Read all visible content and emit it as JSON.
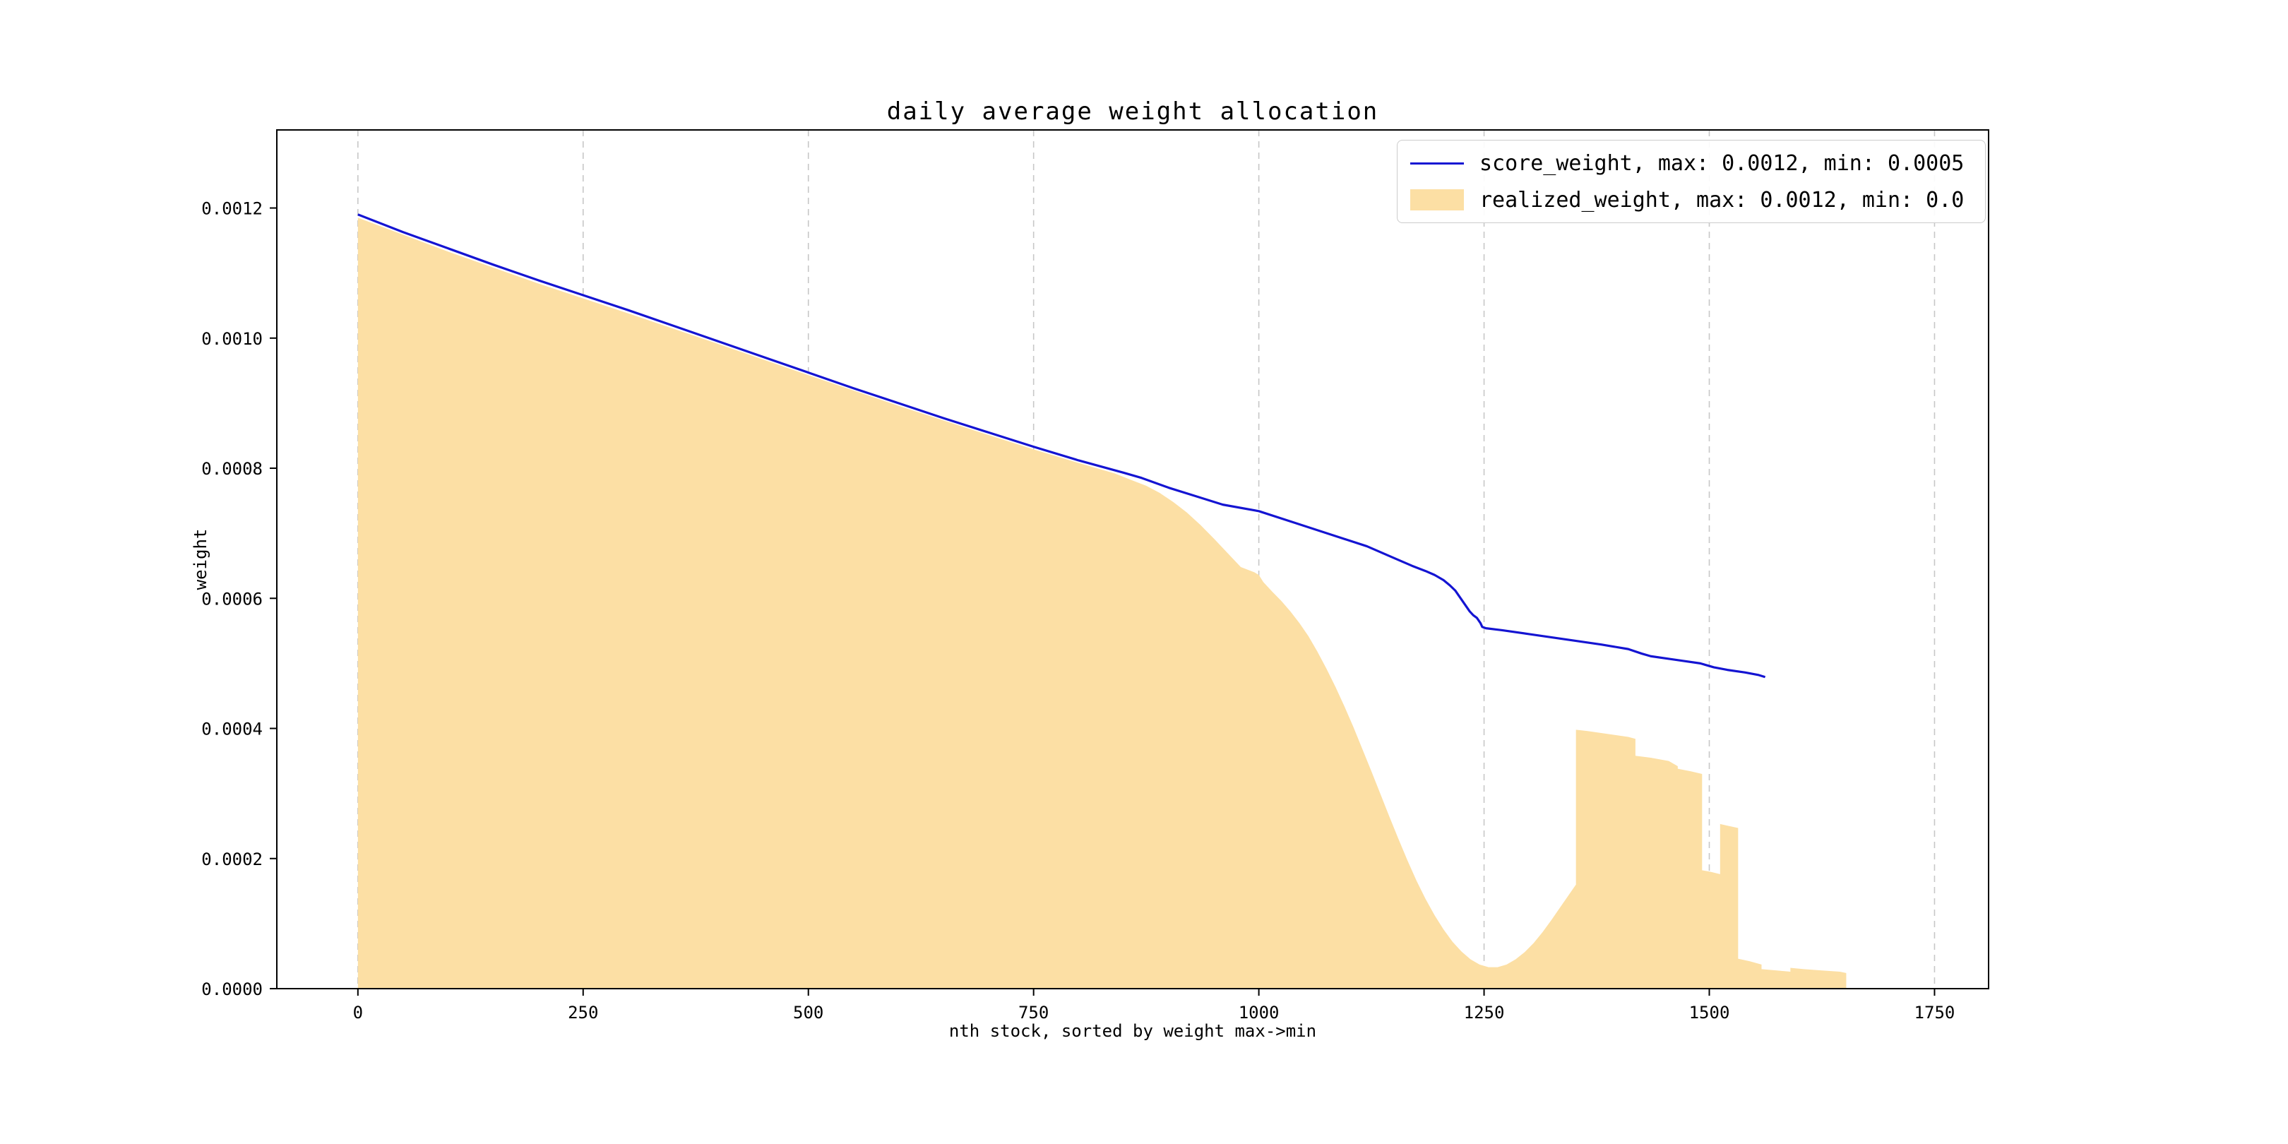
{
  "page": {
    "background": "#ffffff"
  },
  "chart": {
    "title": "daily average weight allocation",
    "xlabel": "nth stock, sorted by weight max->min",
    "ylabel": "weight"
  },
  "legend": {
    "position": "upper right",
    "items": [
      {
        "label": "score_weight, max: 0.0012, min: 0.0005",
        "sample": "line",
        "color": "#1414d2"
      },
      {
        "label": "realized_weight, max: 0.0012, min: 0.0",
        "sample": "patch",
        "color": "#fcdfa4"
      }
    ]
  },
  "chart_data": {
    "type": "area",
    "title": "daily average weight allocation",
    "xlabel": "nth stock, sorted by weight max->min",
    "ylabel": "weight",
    "xlim": [
      -90,
      1810
    ],
    "ylim": [
      0,
      0.00132
    ],
    "x_ticks": [
      0,
      250,
      500,
      750,
      1000,
      1250,
      1500,
      1750
    ],
    "x_tick_labels": [
      "0",
      "250",
      "500",
      "750",
      "1000",
      "1250",
      "1500",
      "1750"
    ],
    "y_ticks": [
      0,
      0.0002,
      0.0004,
      0.0006,
      0.0008,
      0.001,
      0.0012
    ],
    "y_tick_labels": [
      "0.0000",
      "0.0002",
      "0.0004",
      "0.0006",
      "0.0008",
      "0.0010",
      "0.0012"
    ],
    "grid": "vertical-dashed",
    "grid_color": "#c7c7c7",
    "legend_position": "upper right",
    "series": [
      {
        "name": "score_weight",
        "type": "line",
        "color": "#1414d2",
        "max": 0.0012,
        "min": 0.0005,
        "points": [
          [
            0,
            0.00119
          ],
          [
            50,
            0.001163
          ],
          [
            100,
            0.001138
          ],
          [
            150,
            0.001113
          ],
          [
            200,
            0.001089
          ],
          [
            250,
            0.001066
          ],
          [
            300,
            0.001043
          ],
          [
            350,
            0.001019
          ],
          [
            400,
            0.000995
          ],
          [
            450,
            0.000971
          ],
          [
            500,
            0.000947
          ],
          [
            550,
            0.000923
          ],
          [
            600,
            0.0009
          ],
          [
            650,
            0.000877
          ],
          [
            700,
            0.000855
          ],
          [
            750,
            0.000833
          ],
          [
            800,
            0.000812
          ],
          [
            850,
            0.000793
          ],
          [
            870,
            0.000785
          ],
          [
            900,
            0.00077
          ],
          [
            930,
            0.000757
          ],
          [
            960,
            0.000744
          ],
          [
            1000,
            0.000734
          ],
          [
            1040,
            0.000716
          ],
          [
            1080,
            0.000698
          ],
          [
            1120,
            0.00068
          ],
          [
            1150,
            0.000662
          ],
          [
            1170,
            0.00065
          ],
          [
            1185,
            0.000642
          ],
          [
            1195,
            0.000636
          ],
          [
            1205,
            0.000628
          ],
          [
            1212,
            0.00062
          ],
          [
            1218,
            0.000612
          ],
          [
            1222,
            0.000604
          ],
          [
            1226,
            0.000596
          ],
          [
            1230,
            0.000588
          ],
          [
            1234,
            0.00058
          ],
          [
            1238,
            0.000574
          ],
          [
            1242,
            0.00057
          ],
          [
            1246,
            0.000562
          ],
          [
            1248,
            0.000556
          ],
          [
            1252,
            0.000554
          ],
          [
            1270,
            0.000551
          ],
          [
            1300,
            0.000545
          ],
          [
            1340,
            0.000537
          ],
          [
            1380,
            0.000529
          ],
          [
            1410,
            0.000522
          ],
          [
            1425,
            0.000515
          ],
          [
            1435,
            0.000511
          ],
          [
            1455,
            0.000507
          ],
          [
            1470,
            0.000504
          ],
          [
            1490,
            0.0005
          ],
          [
            1505,
            0.000494
          ],
          [
            1520,
            0.00049
          ],
          [
            1540,
            0.000486
          ],
          [
            1555,
            0.000482
          ],
          [
            1562,
            0.000479
          ]
        ]
      },
      {
        "name": "realized_weight",
        "type": "area",
        "color": "#fcdfa4",
        "max": 0.0012,
        "min": 0.0,
        "points": [
          [
            0,
            0.001185
          ],
          [
            100,
            0.001133
          ],
          [
            200,
            0.001084
          ],
          [
            300,
            0.001038
          ],
          [
            400,
            0.000991
          ],
          [
            500,
            0.000943
          ],
          [
            600,
            0.000896
          ],
          [
            700,
            0.000851
          ],
          [
            750,
            0.000829
          ],
          [
            800,
            0.000808
          ],
          [
            840,
            0.000792
          ],
          [
            860,
            0.000781
          ],
          [
            875,
            0.000773
          ],
          [
            890,
            0.000762
          ],
          [
            905,
            0.000748
          ],
          [
            920,
            0.000732
          ],
          [
            935,
            0.000713
          ],
          [
            950,
            0.000692
          ],
          [
            965,
            0.00067
          ],
          [
            980,
            0.000648
          ],
          [
            995,
            0.00064
          ],
          [
            1000,
            0.000636
          ],
          [
            1005,
            0.000625
          ],
          [
            1015,
            0.00061
          ],
          [
            1025,
            0.000596
          ],
          [
            1035,
            0.00058
          ],
          [
            1045,
            0.000562
          ],
          [
            1055,
            0.000542
          ],
          [
            1065,
            0.000518
          ],
          [
            1075,
            0.000492
          ],
          [
            1085,
            0.000464
          ],
          [
            1095,
            0.000434
          ],
          [
            1105,
            0.000402
          ],
          [
            1115,
            0.000368
          ],
          [
            1125,
            0.000334
          ],
          [
            1135,
            0.000299
          ],
          [
            1145,
            0.000264
          ],
          [
            1155,
            0.00023
          ],
          [
            1165,
            0.000197
          ],
          [
            1175,
            0.000166
          ],
          [
            1185,
            0.000138
          ],
          [
            1195,
            0.000113
          ],
          [
            1205,
            9.1e-05
          ],
          [
            1215,
            7.2e-05
          ],
          [
            1225,
            5.7e-05
          ],
          [
            1235,
            4.5e-05
          ],
          [
            1245,
            3.7e-05
          ],
          [
            1255,
            3.3e-05
          ],
          [
            1265,
            3.3e-05
          ],
          [
            1275,
            3.7e-05
          ],
          [
            1285,
            4.5e-05
          ],
          [
            1295,
            5.6e-05
          ],
          [
            1305,
            7e-05
          ],
          [
            1315,
            8.7e-05
          ],
          [
            1325,
            0.000106
          ],
          [
            1335,
            0.000126
          ],
          [
            1345,
            0.000146
          ],
          [
            1352,
            0.00016
          ],
          [
            1352,
            0.000398
          ],
          [
            1365,
            0.000396
          ],
          [
            1380,
            0.000393
          ],
          [
            1395,
            0.00039
          ],
          [
            1410,
            0.000387
          ],
          [
            1418,
            0.000384
          ],
          [
            1418,
            0.000358
          ],
          [
            1435,
            0.000355
          ],
          [
            1455,
            0.00035
          ],
          [
            1465,
            0.000342
          ],
          [
            1465,
            0.000338
          ],
          [
            1480,
            0.000334
          ],
          [
            1492,
            0.00033
          ],
          [
            1492,
            0.000182
          ],
          [
            1500,
            0.00018
          ],
          [
            1512,
            0.000176
          ],
          [
            1512,
            0.000253
          ],
          [
            1522,
            0.00025
          ],
          [
            1532,
            0.000247
          ],
          [
            1532,
            4.6e-05
          ],
          [
            1545,
            4.2e-05
          ],
          [
            1558,
            3.7e-05
          ],
          [
            1558,
            3e-05
          ],
          [
            1575,
            2.8e-05
          ],
          [
            1590,
            2.6e-05
          ],
          [
            1590,
            3.2e-05
          ],
          [
            1605,
            3e-05
          ],
          [
            1625,
            2.8e-05
          ],
          [
            1645,
            2.6e-05
          ],
          [
            1652,
            2.4e-05
          ],
          [
            1652,
            0.0
          ]
        ]
      }
    ]
  }
}
